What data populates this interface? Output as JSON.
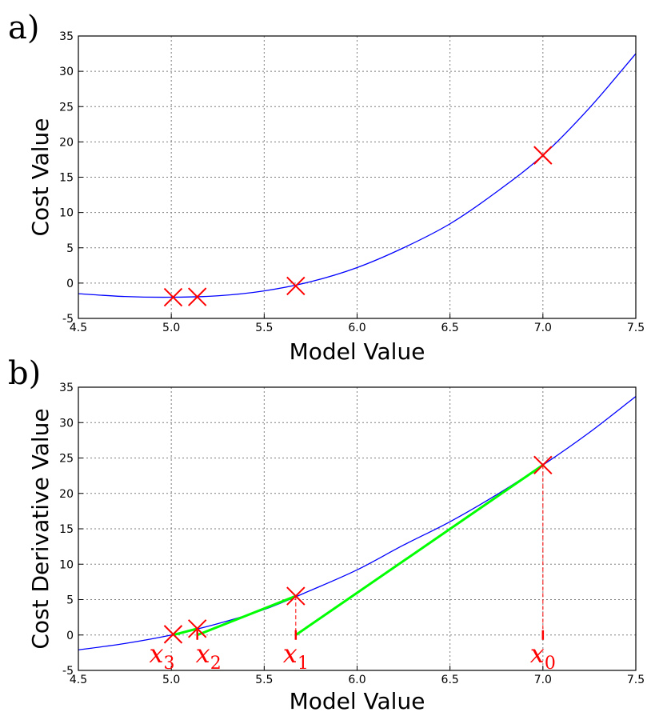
{
  "chart_data": [
    {
      "panel_label": "a)",
      "type": "line",
      "xlabel": "Model Value",
      "ylabel": "Cost Value",
      "xlim": [
        4.5,
        7.5
      ],
      "ylim": [
        -5,
        35
      ],
      "xticks": [
        "4.5",
        "5.0",
        "5.5",
        "6.0",
        "6.5",
        "7.0",
        "7.5"
      ],
      "yticks": [
        "-5",
        "0",
        "5",
        "10",
        "15",
        "20",
        "25",
        "30",
        "35"
      ],
      "grid": true,
      "curve": {
        "x": [
          4.5,
          4.75,
          5.0,
          5.25,
          5.5,
          5.75,
          6.0,
          6.25,
          6.5,
          6.75,
          7.0,
          7.25,
          7.5
        ],
        "y": [
          -1.5,
          -1.9,
          -2.0,
          -1.8,
          -1.1,
          0.2,
          2.2,
          5.0,
          8.4,
          12.9,
          18.1,
          24.8,
          32.5
        ]
      },
      "markers": {
        "x": [
          7.0,
          5.67,
          5.14,
          5.01
        ],
        "y": [
          18.1,
          -0.4,
          -1.95,
          -2.0
        ]
      },
      "colors": {
        "curve": "#0000ff",
        "markers": "#ff0000"
      }
    },
    {
      "panel_label": "b)",
      "type": "line",
      "xlabel": "Model Value",
      "ylabel": "Cost Derivative Value",
      "xlim": [
        4.5,
        7.5
      ],
      "ylim": [
        -5,
        35
      ],
      "xticks": [
        "4.5",
        "5.0",
        "5.5",
        "6.0",
        "6.5",
        "7.0",
        "7.5"
      ],
      "yticks": [
        "-5",
        "0",
        "5",
        "10",
        "15",
        "20",
        "25",
        "30",
        "35"
      ],
      "grid": true,
      "curve": {
        "x": [
          4.5,
          4.75,
          5.0,
          5.25,
          5.5,
          5.75,
          6.0,
          6.25,
          6.5,
          6.75,
          7.0,
          7.25,
          7.5
        ],
        "y": [
          -2.1,
          -1.2,
          0.0,
          1.6,
          3.6,
          6.3,
          9.2,
          12.7,
          16.0,
          19.8,
          24.0,
          28.6,
          33.7
        ]
      },
      "markers": {
        "x": [
          7.0,
          5.67,
          5.14,
          5.01
        ],
        "y": [
          24.0,
          5.5,
          0.9,
          0.1
        ]
      },
      "tangents": [
        {
          "x": [
            7.0,
            5.67
          ],
          "y": [
            24.0,
            0.0
          ]
        },
        {
          "x": [
            5.67,
            5.14
          ],
          "y": [
            5.5,
            0.0
          ]
        },
        {
          "x": [
            5.14,
            5.01
          ],
          "y": [
            0.9,
            0.0
          ]
        }
      ],
      "iterate_labels": [
        {
          "base": "x",
          "sub": "0",
          "x": 7.0
        },
        {
          "base": "x",
          "sub": "1",
          "x": 5.67
        },
        {
          "base": "x",
          "sub": "2",
          "x": 5.14
        },
        {
          "base": "x",
          "sub": "3",
          "x": 5.01
        }
      ],
      "colors": {
        "curve": "#0000ff",
        "markers": "#ff0000",
        "tangents": "#00ff00",
        "labels": "#ff0000"
      }
    }
  ]
}
